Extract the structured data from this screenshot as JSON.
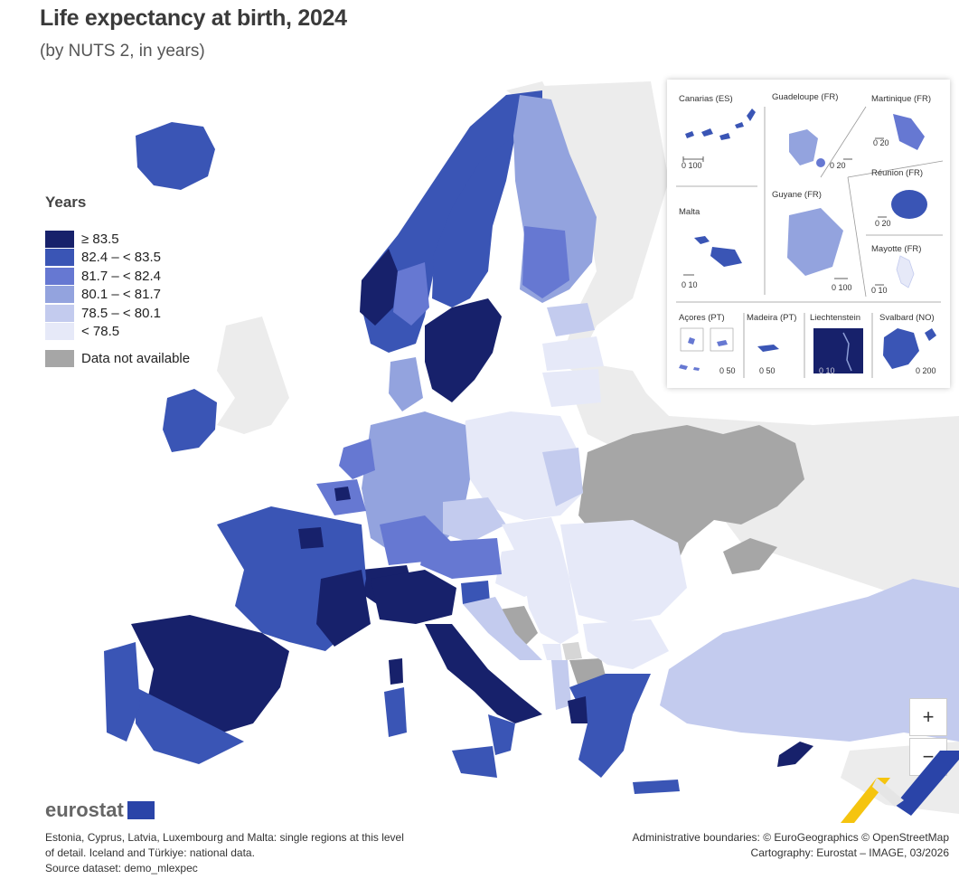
{
  "title": "Life expectancy at birth, 2024",
  "subtitle": "(by NUTS 2, in years)",
  "legend": {
    "title": "Years",
    "classes": [
      {
        "label": "≥ 83.5",
        "color": "#17216b"
      },
      {
        "label": "82.4 – < 83.5",
        "color": "#3a55b5"
      },
      {
        "label": "81.7 – < 82.4",
        "color": "#6678d2"
      },
      {
        "label": "80.1 – < 81.7",
        "color": "#93a3de"
      },
      {
        "label": "78.5 – < 80.1",
        "color": "#c3cbee"
      },
      {
        "label": "< 78.5",
        "color": "#e6e9f8"
      }
    ],
    "na_label": "Data not available",
    "na_color": "#a6a6a6"
  },
  "insets": [
    {
      "name": "Canarias (ES)",
      "scale": "0 100"
    },
    {
      "name": "Guadeloupe (FR)",
      "scale": "0 20"
    },
    {
      "name": "Martinique (FR)",
      "scale": "0 20"
    },
    {
      "name": "Réunion (FR)",
      "scale": "0 20"
    },
    {
      "name": "Malta",
      "scale": "0 10"
    },
    {
      "name": "Guyane (FR)",
      "scale": "0 100"
    },
    {
      "name": "Mayotte (FR)",
      "scale": "0 10"
    },
    {
      "name": "Açores (PT)",
      "scale": "0 50"
    },
    {
      "name": "Madeira (PT)",
      "scale": "0 50"
    },
    {
      "name": "Liechtenstein",
      "scale": "0 10"
    },
    {
      "name": "Svalbard (NO)",
      "scale": "0 200"
    }
  ],
  "zoom": {
    "in": "+",
    "out": "−"
  },
  "logo": "eurostat",
  "footnote": {
    "line1": "Estonia, Cyprus, Latvia, Luxembourg and Malta: single regions at this level",
    "line2": "of detail. Iceland and Türkiye: national data.",
    "line3": "Source dataset: demo_mlexpec"
  },
  "credits": {
    "line1": "Administrative boundaries: © EuroGeographics © OpenStreetMap",
    "line2": "Cartography: Eurostat – IMAGE, 03/2026"
  }
}
